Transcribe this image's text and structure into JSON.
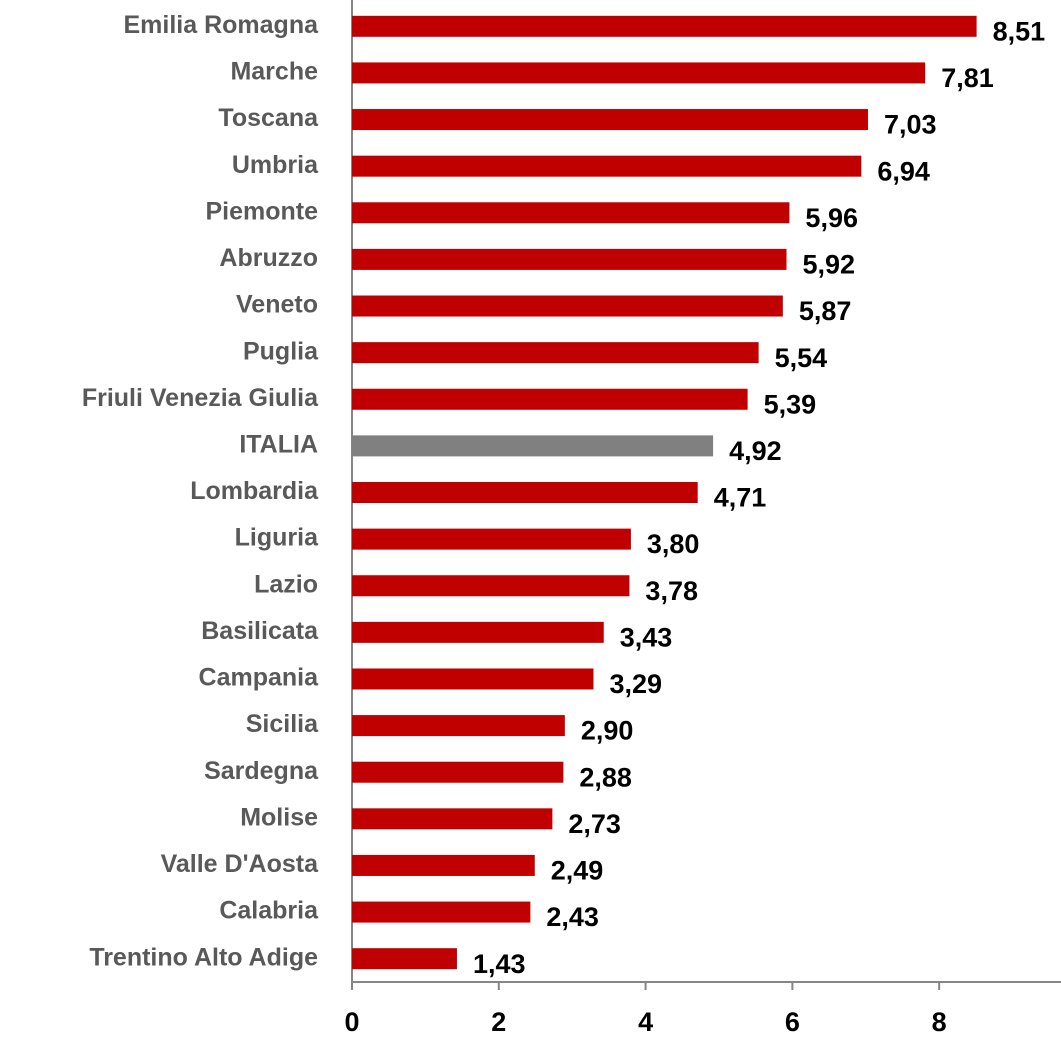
{
  "chart_data": {
    "type": "bar",
    "orientation": "horizontal",
    "categories": [
      "Emilia Romagna",
      "Marche",
      "Toscana",
      "Umbria",
      "Piemonte",
      "Abruzzo",
      "Veneto",
      "Puglia",
      "Friuli Venezia Giulia",
      "ITALIA",
      "Lombardia",
      "Liguria",
      "Lazio",
      "Basilicata",
      "Campania",
      "Sicilia",
      "Sardegna",
      "Molise",
      "Valle D'Aosta",
      "Calabria",
      "Trentino Alto Adige"
    ],
    "values": [
      8.51,
      7.81,
      7.03,
      6.94,
      5.96,
      5.92,
      5.87,
      5.54,
      5.39,
      4.92,
      4.71,
      3.8,
      3.78,
      3.43,
      3.29,
      2.9,
      2.88,
      2.73,
      2.49,
      2.43,
      1.43
    ],
    "value_labels": [
      "8,51",
      "7,81",
      "7,03",
      "6,94",
      "5,96",
      "5,92",
      "5,87",
      "5,54",
      "5,39",
      "4,92",
      "4,71",
      "3,80",
      "3,78",
      "3,43",
      "3,29",
      "2,90",
      "2,88",
      "2,73",
      "2,49",
      "2,43",
      "1,43"
    ],
    "colors": [
      "#c00000",
      "#c00000",
      "#c00000",
      "#c00000",
      "#c00000",
      "#c00000",
      "#c00000",
      "#c00000",
      "#c00000",
      "#808080",
      "#c00000",
      "#c00000",
      "#c00000",
      "#c00000",
      "#c00000",
      "#c00000",
      "#c00000",
      "#c00000",
      "#c00000",
      "#c00000",
      "#c00000"
    ],
    "xlim": [
      0,
      9.66
    ],
    "xticks": [
      0,
      2,
      4,
      6,
      8
    ],
    "grid": false
  }
}
